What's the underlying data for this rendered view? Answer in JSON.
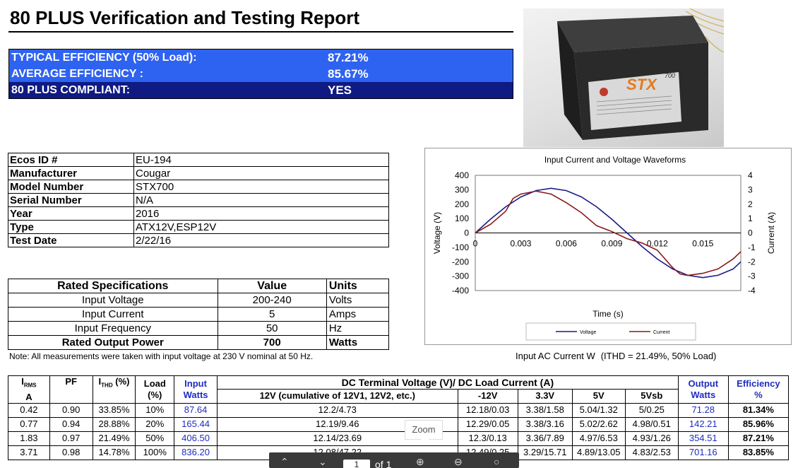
{
  "title": "80 PLUS Verification and Testing Report",
  "efficiency": {
    "typical_label": "TYPICAL EFFICIENCY (50% Load):",
    "typical_value": "87.21%",
    "average_label": "AVERAGE EFFICIENCY :",
    "average_value": "85.67%",
    "compliant_label": "80 PLUS COMPLIANT:",
    "compliant_value": "YES"
  },
  "product_photo": {
    "brand_text": "STX",
    "model_suffix": "700"
  },
  "info": [
    {
      "key": "Ecos ID #",
      "value": "EU-194"
    },
    {
      "key": "Manufacturer",
      "value": "Cougar"
    },
    {
      "key": "Model Number",
      "value": "STX700"
    },
    {
      "key": "Serial Number",
      "value": "N/A"
    },
    {
      "key": "Year",
      "value": "2016"
    },
    {
      "key": "Type",
      "value": "ATX12V,ESP12V"
    },
    {
      "key": "Test Date",
      "value": "2/22/16"
    }
  ],
  "specs": {
    "header": {
      "name": "Rated Specifications",
      "value": "Value",
      "units": "Units"
    },
    "rows": [
      {
        "name": "Input Voltage",
        "value": "200-240",
        "units": "Volts"
      },
      {
        "name": "Input Current",
        "value": "5",
        "units": "Amps"
      },
      {
        "name": "Input Frequency",
        "value": "50",
        "units": "Hz"
      },
      {
        "name": "Rated Output Power",
        "value": "700",
        "units": "Watts"
      }
    ]
  },
  "note": "Note: All measurements were taken with input voltage at 230 V nominal at 50 Hz.",
  "chart_caption": {
    "left": "Input AC Current W",
    "right": "(ITHD = 21.49%, 50% Load)"
  },
  "chart_data": {
    "type": "line",
    "title": "Input Current and Voltage Waveforms",
    "xlabel": "Time (s)",
    "ylabel": "Voltage (V)",
    "y2label": "Current (A)",
    "xlim": [
      0,
      0.0175
    ],
    "ylim": [
      -400,
      400
    ],
    "y2lim": [
      -4,
      4
    ],
    "x_ticks": [
      "0",
      "0.003",
      "0.006",
      "0.009",
      "0.012",
      "0.015"
    ],
    "y_ticks": [
      "400",
      "300",
      "200",
      "100",
      "0",
      "-100",
      "-200",
      "-300",
      "-400"
    ],
    "y2_ticks": [
      "4",
      "3",
      "2",
      "1",
      "0",
      "-1",
      "-2",
      "-3",
      "-4"
    ],
    "legend_position": "bottom",
    "colors": {
      "voltage": "#1a1a8c",
      "current": "#8b1a1a"
    },
    "series": [
      {
        "name": "Voltage",
        "axis": "left",
        "x": [
          0,
          0.001,
          0.002,
          0.003,
          0.004,
          0.005,
          0.006,
          0.007,
          0.008,
          0.009,
          0.01,
          0.011,
          0.012,
          0.013,
          0.014,
          0.015,
          0.016,
          0.017,
          0.0175
        ],
        "y": [
          0,
          95,
          181,
          250,
          294,
          310,
          294,
          250,
          181,
          95,
          0,
          -95,
          -181,
          -250,
          -294,
          -310,
          -294,
          -250,
          -200
        ]
      },
      {
        "name": "Current",
        "axis": "right",
        "x": [
          0,
          0.001,
          0.002,
          0.0025,
          0.003,
          0.0035,
          0.004,
          0.005,
          0.006,
          0.007,
          0.008,
          0.009,
          0.01,
          0.011,
          0.012,
          0.013,
          0.0135,
          0.014,
          0.015,
          0.016,
          0.017,
          0.0175
        ],
        "y": [
          0,
          0.6,
          1.5,
          2.4,
          2.7,
          2.8,
          2.9,
          2.7,
          2.1,
          1.4,
          0.5,
          0.1,
          -0.4,
          -0.7,
          -1.2,
          -2.4,
          -2.85,
          -2.95,
          -2.8,
          -2.5,
          -1.8,
          -1.3
        ]
      }
    ]
  },
  "results": {
    "headers": {
      "irms": "I",
      "irms_sub": "RMS",
      "irms_unit": "A",
      "pf": "PF",
      "ithd": "I",
      "ithd_sub": "THD",
      "ithd_unit": "(%)",
      "load": "Load",
      "load_unit": "(%)",
      "input": "Input",
      "input_unit": "Watts",
      "dc_group": "DC Terminal Voltage (V)/ DC Load Current (A)",
      "v12": "12V (cumulative of 12V1, 12V2, etc.)",
      "vn12": "-12V",
      "v33": "3.3V",
      "v5": "5V",
      "v5sb": "5Vsb",
      "output": "Output",
      "output_unit": "Watts",
      "eff": "Efficiency",
      "eff_unit": "%"
    },
    "rows": [
      {
        "irms": "0.42",
        "pf": "0.90",
        "ithd": "33.85%",
        "load": "10%",
        "input": "87.64",
        "v12": "12.2/4.73",
        "vn12": "12.18/0.03",
        "v33": "3.38/1.58",
        "v5": "5.04/1.32",
        "v5sb": "5/0.25",
        "output": "71.28",
        "eff": "81.34%"
      },
      {
        "irms": "0.77",
        "pf": "0.94",
        "ithd": "28.88%",
        "load": "20%",
        "input": "165.44",
        "v12": "12.19/9.46",
        "vn12": "12.29/0.05",
        "v33": "3.38/3.16",
        "v5": "5.02/2.62",
        "v5sb": "4.98/0.51",
        "output": "142.21",
        "eff": "85.96%"
      },
      {
        "irms": "1.83",
        "pf": "0.97",
        "ithd": "21.49%",
        "load": "50%",
        "input": "406.50",
        "v12": "12.14/23.69",
        "vn12": "12.3/0.13",
        "v33": "3.36/7.89",
        "v5": "4.97/6.53",
        "v5sb": "4.93/1.26",
        "output": "354.51",
        "eff": "87.21%"
      },
      {
        "irms": "3.71",
        "pf": "0.98",
        "ithd": "14.78%",
        "load": "100%",
        "input": "836.20",
        "v12": "12.08/47.22",
        "vn12": "12.49/0.25",
        "v33": "3.29/15.71",
        "v5": "4.89/13.05",
        "v5sb": "4.83/2.53",
        "output": "701.16",
        "eff": "83.85%"
      }
    ]
  },
  "viewer": {
    "tooltip": "Zoom",
    "page": "1",
    "of": "of 1"
  }
}
